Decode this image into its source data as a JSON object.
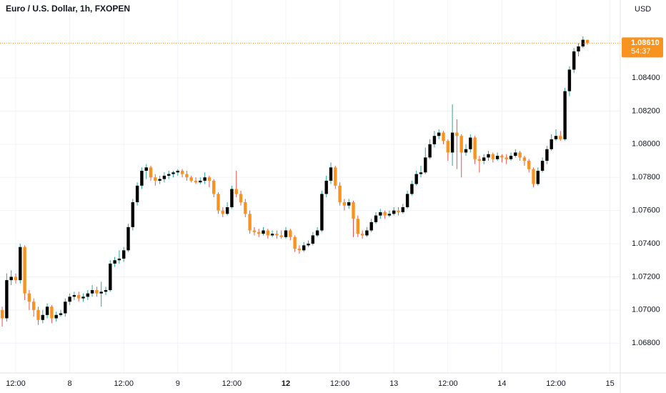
{
  "chart_data": {
    "type": "candlestick",
    "title": "Euro / U.S. Dollar, 1h, FXOPEN",
    "currency": "USD",
    "up_color": "#000000",
    "down_color": "#f7931e",
    "up_wick_color": "#26a69a",
    "down_wick_color": "#ef5350",
    "grid": true,
    "categories": [
      null,
      null,
      null,
      "12:00",
      null,
      null,
      null,
      null,
      null,
      null,
      null,
      null,
      null,
      null,
      null,
      "8",
      null,
      null,
      null,
      null,
      null,
      null,
      null,
      null,
      null,
      null,
      null,
      "12:00",
      null,
      null,
      null,
      null,
      null,
      null,
      null,
      null,
      null,
      null,
      null,
      "9",
      null,
      null,
      null,
      null,
      null,
      null,
      null,
      null,
      null,
      null,
      null,
      "12:00",
      null,
      null,
      null,
      null,
      null,
      null,
      null,
      null,
      null,
      null,
      null,
      "12",
      null,
      null,
      null,
      null,
      null,
      null,
      null,
      null,
      null,
      null,
      null,
      "12:00",
      null,
      null,
      null,
      null,
      null,
      null,
      null,
      null,
      null,
      null,
      null,
      "13",
      null,
      null,
      null,
      null,
      null,
      null,
      null,
      null,
      null,
      null,
      null,
      "12:00",
      null,
      null,
      null,
      null,
      null,
      null,
      null,
      null,
      null,
      null,
      null,
      "14",
      null,
      null,
      null,
      null,
      null,
      null,
      null,
      null,
      null,
      null,
      null,
      "12:00",
      null,
      null,
      null,
      null,
      null,
      null,
      null,
      null,
      null,
      null,
      null,
      "15"
    ],
    "open": [
      1.07,
      1.0695,
      1.0718,
      1.072,
      1.0718,
      1.0738,
      1.071,
      1.0705,
      1.07,
      1.0694,
      1.0697,
      1.0702,
      1.0695,
      1.0697,
      1.0698,
      1.0705,
      1.0708,
      1.0709,
      1.0707,
      1.0708,
      1.071,
      1.0712,
      1.071,
      1.0711,
      1.0712,
      1.0728,
      1.073,
      1.0731,
      1.0736,
      1.075,
      1.0765,
      1.0775,
      1.0784,
      1.0786,
      1.078,
      1.0778,
      1.0779,
      1.0781,
      1.0782,
      1.0783,
      1.0784,
      1.0782,
      1.078,
      1.0778,
      1.0777,
      1.0778,
      1.078,
      1.0778,
      1.077,
      1.076,
      1.0758,
      1.0762,
      1.0773,
      1.077,
      1.0765,
      1.0758,
      1.0748,
      1.0747,
      1.0746,
      1.0748,
      1.0745,
      1.0746,
      1.0745,
      1.0744,
      1.0748,
      1.0744,
      1.0737,
      1.0736,
      1.0739,
      1.074,
      1.0745,
      1.0748,
      1.077,
      1.0778,
      1.0786,
      1.0775,
      1.0765,
      1.0763,
      1.0765,
      1.0755,
      1.0746,
      1.0745,
      1.0748,
      1.0753,
      1.0757,
      1.0759,
      1.0757,
      1.0758,
      1.076,
      1.0759,
      1.0762,
      1.077,
      1.0776,
      1.0782,
      1.0783,
      1.0792,
      1.08,
      1.0805,
      1.0807,
      1.0802,
      1.0795,
      1.0807,
      1.0805,
      1.0795,
      1.0797,
      1.0804,
      1.0791,
      1.079,
      1.0792,
      1.0794,
      1.0791,
      1.0793,
      1.0792,
      1.0791,
      1.0793,
      1.0795,
      1.0792,
      1.079,
      1.0785,
      1.0776,
      1.0784,
      1.079,
      1.0797,
      1.0803,
      1.0805,
      1.0803,
      1.0832,
      1.0845,
      1.0856,
      1.0859,
      1.0863,
      null,
      null,
      null,
      null,
      null
    ],
    "high": [
      1.0702,
      1.0722,
      1.0724,
      1.0722,
      1.074,
      1.0739,
      1.0712,
      1.0707,
      1.0702,
      1.07,
      1.0704,
      1.0703,
      1.0699,
      1.07,
      1.0707,
      1.071,
      1.0711,
      1.0711,
      1.071,
      1.0712,
      1.0715,
      1.0714,
      1.0717,
      1.0714,
      1.073,
      1.0732,
      1.0736,
      1.0738,
      1.0752,
      1.0767,
      1.0777,
      1.0786,
      1.0788,
      1.0787,
      1.0782,
      1.0781,
      1.0783,
      1.0784,
      1.0784,
      1.0785,
      1.0785,
      1.0784,
      1.0781,
      1.078,
      1.078,
      1.0783,
      1.0781,
      1.0779,
      1.0771,
      1.0762,
      1.0765,
      1.0775,
      1.0784,
      1.0772,
      1.0767,
      1.076,
      1.075,
      1.0749,
      1.075,
      1.0749,
      1.0748,
      1.0748,
      1.0748,
      1.075,
      1.0749,
      1.0745,
      1.0739,
      1.0741,
      1.0742,
      1.0747,
      1.075,
      1.0772,
      1.0781,
      1.0789,
      1.0787,
      1.0777,
      1.0767,
      1.0767,
      1.0766,
      1.0757,
      1.0748,
      1.075,
      1.0755,
      1.0759,
      1.0761,
      1.076,
      1.076,
      1.0762,
      1.0762,
      1.0764,
      1.0772,
      1.0778,
      1.0784,
      1.0787,
      1.0798,
      1.0803,
      1.0808,
      1.0809,
      1.0808,
      1.0803,
      1.0824,
      1.0815,
      1.0806,
      1.08,
      1.0806,
      1.0805,
      1.0793,
      1.0794,
      1.0796,
      1.0795,
      1.0795,
      1.0794,
      1.0794,
      1.0795,
      1.0797,
      1.0796,
      1.0793,
      1.0791,
      1.0786,
      1.0786,
      1.0792,
      1.0799,
      1.0806,
      1.0809,
      1.0808,
      1.0834,
      1.0847,
      1.0858,
      1.0861,
      1.0865,
      1.0863,
      null,
      null,
      null,
      null,
      null
    ],
    "low": [
      1.069,
      1.0693,
      1.0715,
      1.0716,
      1.0716,
      1.0706,
      1.07,
      1.0696,
      1.0691,
      1.0692,
      1.0695,
      1.0692,
      1.0693,
      1.0696,
      1.0696,
      1.0703,
      1.0706,
      1.0705,
      1.0705,
      1.0706,
      1.0708,
      1.0708,
      1.0702,
      1.0709,
      1.0711,
      1.0726,
      1.0728,
      1.0729,
      1.0735,
      1.0748,
      1.0763,
      1.0773,
      1.0779,
      1.0778,
      1.0775,
      1.0776,
      1.0777,
      1.0779,
      1.078,
      1.0781,
      1.078,
      1.0778,
      1.0777,
      1.0776,
      1.0776,
      1.0776,
      1.0774,
      1.0768,
      1.0758,
      1.0756,
      1.0757,
      1.0761,
      1.0768,
      1.0763,
      1.0756,
      1.0746,
      1.0745,
      1.0744,
      1.0745,
      1.0743,
      1.0744,
      1.0743,
      1.0743,
      1.0743,
      1.0742,
      1.0735,
      1.0734,
      1.0735,
      1.0738,
      1.0739,
      1.0744,
      1.0747,
      1.0768,
      1.0776,
      1.0773,
      1.0763,
      1.076,
      1.0761,
      1.0744,
      1.0744,
      1.0743,
      1.0744,
      1.0747,
      1.0752,
      1.0755,
      1.0755,
      1.0756,
      1.0757,
      1.0757,
      1.0758,
      1.0761,
      1.0769,
      1.0775,
      1.078,
      1.0782,
      1.0791,
      1.0798,
      1.0803,
      1.08,
      1.079,
      1.0787,
      1.0785,
      1.078,
      1.0793,
      1.0795,
      1.0788,
      1.0783,
      1.0788,
      1.079,
      1.0789,
      1.079,
      1.0789,
      1.0788,
      1.079,
      1.0792,
      1.079,
      1.0787,
      1.0783,
      1.0774,
      1.0775,
      1.0783,
      1.0788,
      1.0796,
      1.0802,
      1.0802,
      1.0802,
      1.0829,
      1.0843,
      1.0853,
      1.0858,
      1.086,
      null,
      null,
      null,
      null,
      null
    ],
    "close": [
      1.0695,
      1.0718,
      1.072,
      1.0718,
      1.0738,
      1.071,
      1.0705,
      1.07,
      1.0694,
      1.0697,
      1.0702,
      1.0695,
      1.0697,
      1.0698,
      1.0705,
      1.0708,
      1.0709,
      1.0707,
      1.0708,
      1.071,
      1.0712,
      1.071,
      1.0711,
      1.0712,
      1.0728,
      1.073,
      1.0731,
      1.0736,
      1.075,
      1.0765,
      1.0775,
      1.0784,
      1.0786,
      1.078,
      1.0778,
      1.0779,
      1.0781,
      1.0782,
      1.0783,
      1.0784,
      1.0782,
      1.078,
      1.0778,
      1.0777,
      1.0778,
      1.078,
      1.0778,
      1.077,
      1.076,
      1.0758,
      1.0762,
      1.0773,
      1.077,
      1.0765,
      1.0758,
      1.0748,
      1.0747,
      1.0746,
      1.0748,
      1.0745,
      1.0746,
      1.0745,
      1.0744,
      1.0748,
      1.0744,
      1.0737,
      1.0736,
      1.0739,
      1.074,
      1.0745,
      1.0748,
      1.077,
      1.0778,
      1.0786,
      1.0775,
      1.0765,
      1.0763,
      1.0765,
      1.0755,
      1.0746,
      1.0745,
      1.0748,
      1.0753,
      1.0757,
      1.0759,
      1.0757,
      1.0758,
      1.076,
      1.0759,
      1.0762,
      1.077,
      1.0776,
      1.0782,
      1.0783,
      1.0792,
      1.08,
      1.0805,
      1.0807,
      1.0802,
      1.0795,
      1.0807,
      1.0805,
      1.0795,
      1.0797,
      1.0804,
      1.0791,
      1.079,
      1.0792,
      1.0794,
      1.0791,
      1.0793,
      1.0792,
      1.0791,
      1.0793,
      1.0795,
      1.0792,
      1.079,
      1.0785,
      1.0776,
      1.0784,
      1.079,
      1.0797,
      1.0803,
      1.0805,
      1.0803,
      1.0832,
      1.0845,
      1.0856,
      1.0859,
      1.0863,
      1.0861,
      null,
      null,
      null,
      null,
      null
    ],
    "ylim": [
      1.0662,
      1.0887
    ],
    "yticks": [
      {
        "value": 1.068,
        "label": "1.06800"
      },
      {
        "value": 1.07,
        "label": "1.07000"
      },
      {
        "value": 1.072,
        "label": "1.07200"
      },
      {
        "value": 1.074,
        "label": "1.07400"
      },
      {
        "value": 1.076,
        "label": "1.07600"
      },
      {
        "value": 1.078,
        "label": "1.07800"
      },
      {
        "value": 1.08,
        "label": "1.08000"
      },
      {
        "value": 1.082,
        "label": "1.08200"
      },
      {
        "value": 1.084,
        "label": "1.08400"
      }
    ],
    "last_price": {
      "value": 1.0861,
      "label": "1.08610"
    },
    "countdown": "54:37"
  }
}
